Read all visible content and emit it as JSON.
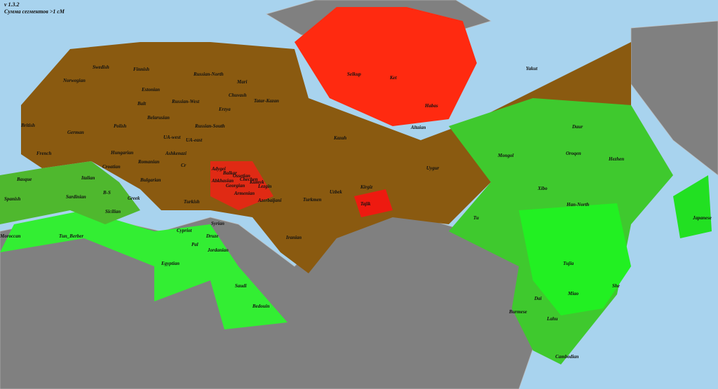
{
  "header": {
    "version": "v 1.3.2",
    "subtitle": "Сумма сегментов >1 cM"
  },
  "labels": [
    "Swedish",
    "Finnish",
    "Norwegian",
    "Estonian",
    "Russian-North",
    "Mari",
    "Chuvash",
    "Tatar-Kazan",
    "Selkup",
    "Ket",
    "Yakut",
    "Balt",
    "Russian-West",
    "Erzya",
    "Habas",
    "British",
    "Belarusian",
    "Russian-South",
    "Altaian",
    "German",
    "Polish",
    "UA-west",
    "UA-east",
    "Kazah",
    "Daur",
    "French",
    "Hungarian",
    "Ashkenazi",
    "Croatian",
    "Romanian",
    "Mongol",
    "Oroqen",
    "Hezhen",
    "Cr",
    "Adygei",
    "Balkar",
    "Chechen",
    "Basque",
    "Italian",
    "Bulgarian",
    "Abkhasian",
    "Ossetian",
    "Georgian",
    "Kumyk",
    "Lezgin",
    "Uzbek",
    "Kirgiz",
    "Uygur",
    "Xibo",
    "Sardinian",
    "B-S",
    "Armenian",
    "Turkmen",
    "Tajik",
    "Spanish",
    "Greek",
    "Turkish",
    "Azerbaijani",
    "Han-North",
    "Japanese",
    "Sicilian",
    "Syrian",
    "Tu",
    "Moroccan",
    "Tun_Berber",
    "Cypriot",
    "Druze",
    "Iranian",
    "Pal",
    "Jordanian",
    "Egyptian",
    "Tujia",
    "Saudi",
    "Miao",
    "She",
    "Dai",
    "Bedouin",
    "Burmese",
    "Lahu",
    "Cambodian"
  ]
}
